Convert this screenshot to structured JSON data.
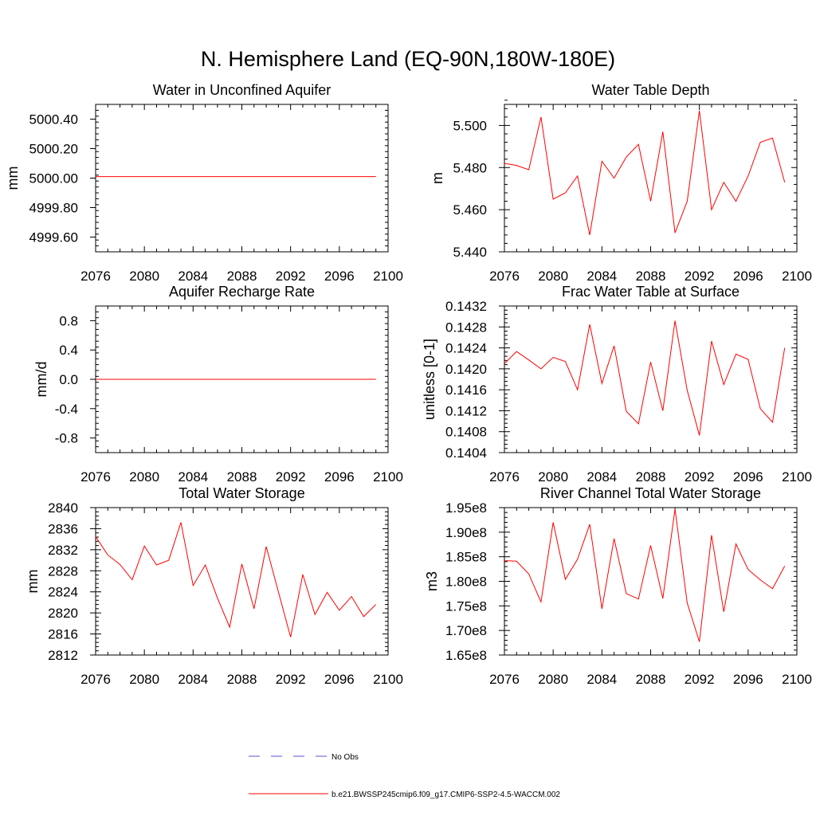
{
  "page_title": "N. Hemisphere Land (EQ-90N,180W-180E)",
  "colors": {
    "model_line": "#ff0000",
    "obs_line": "#5555cc",
    "axis": "#000000"
  },
  "legend": {
    "obs_label": "No Obs",
    "model_label": "b.e21.BWSSP245cmip6.f09_g17.CMIP6-SSP2-4.5-WACCM.002"
  },
  "chart_data": [
    {
      "id": "aquifer",
      "type": "line",
      "title": "Water in Unconfined Aquifer",
      "ylabel": "mm",
      "xlim": [
        2076,
        2100
      ],
      "ylim": [
        4999.5,
        5000.5
      ],
      "xticks": [
        "2076",
        "2080",
        "2084",
        "2088",
        "2092",
        "2096",
        "2100"
      ],
      "yticks": [
        "4999.60",
        "4999.80",
        "5000.00",
        "5000.20",
        "5000.40"
      ],
      "x": [
        2076,
        2077,
        2078,
        2079,
        2080,
        2081,
        2082,
        2083,
        2084,
        2085,
        2086,
        2087,
        2088,
        2089,
        2090,
        2091,
        2092,
        2093,
        2094,
        2095,
        2096,
        2097,
        2098,
        2099
      ],
      "series": [
        {
          "name": "b.e21.BWSSP245cmip6.f09_g17.CMIP6-SSP2-4.5-WACCM.002",
          "values": [
            5000.01,
            5000.01,
            5000.01,
            5000.01,
            5000.01,
            5000.01,
            5000.01,
            5000.01,
            5000.01,
            5000.01,
            5000.01,
            5000.01,
            5000.01,
            5000.01,
            5000.01,
            5000.01,
            5000.01,
            5000.01,
            5000.01,
            5000.01,
            5000.01,
            5000.01,
            5000.01,
            5000.01
          ]
        }
      ]
    },
    {
      "id": "wtd",
      "type": "line",
      "title": "Water Table Depth",
      "ylabel": "m",
      "xlim": [
        2076,
        2100
      ],
      "ylim": [
        5.44,
        5.51
      ],
      "xticks": [
        "2076",
        "2080",
        "2084",
        "2088",
        "2092",
        "2096",
        "2100"
      ],
      "yticks": [
        "5.440",
        "5.460",
        "5.480",
        "5.500"
      ],
      "x": [
        2076,
        2077,
        2078,
        2079,
        2080,
        2081,
        2082,
        2083,
        2084,
        2085,
        2086,
        2087,
        2088,
        2089,
        2090,
        2091,
        2092,
        2093,
        2094,
        2095,
        2096,
        2097,
        2098,
        2099
      ],
      "series": [
        {
          "name": "b.e21.BWSSP245cmip6.f09_g17.CMIP6-SSP2-4.5-WACCM.002",
          "values": [
            5.482,
            5.481,
            5.479,
            5.504,
            5.465,
            5.468,
            5.476,
            5.448,
            5.483,
            5.475,
            5.485,
            5.491,
            5.464,
            5.497,
            5.449,
            5.464,
            5.507,
            5.46,
            5.473,
            5.464,
            5.476,
            5.492,
            5.494,
            5.473
          ]
        }
      ]
    },
    {
      "id": "recharge",
      "type": "line",
      "title": "Aquifer Recharge Rate",
      "ylabel": "mm/d",
      "xlim": [
        2076,
        2100
      ],
      "ylim": [
        -1.0,
        1.0
      ],
      "xticks": [
        "2076",
        "2080",
        "2084",
        "2088",
        "2092",
        "2096",
        "2100"
      ],
      "yticks": [
        "-0.8",
        "-0.4",
        "0.0",
        "0.4",
        "0.8"
      ],
      "x": [
        2076,
        2077,
        2078,
        2079,
        2080,
        2081,
        2082,
        2083,
        2084,
        2085,
        2086,
        2087,
        2088,
        2089,
        2090,
        2091,
        2092,
        2093,
        2094,
        2095,
        2096,
        2097,
        2098,
        2099
      ],
      "series": [
        {
          "name": "b.e21.BWSSP245cmip6.f09_g17.CMIP6-SSP2-4.5-WACCM.002",
          "values": [
            0,
            0,
            0,
            0,
            0,
            0,
            0,
            0,
            0,
            0,
            0,
            0,
            0,
            0,
            0,
            0,
            0,
            0,
            0,
            0,
            0,
            0,
            0,
            0
          ]
        }
      ]
    },
    {
      "id": "fwts",
      "type": "line",
      "title": "Frac Water Table at Surface",
      "ylabel": "unitless [0-1]",
      "xlim": [
        2076,
        2100
      ],
      "ylim": [
        0.1404,
        0.1432
      ],
      "xticks": [
        "2076",
        "2080",
        "2084",
        "2088",
        "2092",
        "2096",
        "2100"
      ],
      "yticks": [
        "0.1404",
        "0.1408",
        "0.1412",
        "0.1416",
        "0.1420",
        "0.1424",
        "0.1428",
        "0.1432"
      ],
      "x": [
        2076,
        2077,
        2078,
        2079,
        2080,
        2081,
        2082,
        2083,
        2084,
        2085,
        2086,
        2087,
        2088,
        2089,
        2090,
        2091,
        2092,
        2093,
        2094,
        2095,
        2096,
        2097,
        2098,
        2099
      ],
      "series": [
        {
          "name": "b.e21.BWSSP245cmip6.f09_g17.CMIP6-SSP2-4.5-WACCM.002",
          "values": [
            0.1421,
            0.14233,
            0.14217,
            0.142,
            0.14222,
            0.14214,
            0.1416,
            0.14285,
            0.14172,
            0.14244,
            0.14119,
            0.14095,
            0.14213,
            0.1412,
            0.14292,
            0.14159,
            0.14073,
            0.14253,
            0.1417,
            0.14228,
            0.14218,
            0.14124,
            0.14098,
            0.1424
          ]
        }
      ]
    },
    {
      "id": "tws",
      "type": "line",
      "title": "Total Water Storage",
      "ylabel": "mm",
      "xlim": [
        2076,
        2100
      ],
      "ylim": [
        2812,
        2840
      ],
      "xticks": [
        "2076",
        "2080",
        "2084",
        "2088",
        "2092",
        "2096",
        "2100"
      ],
      "yticks": [
        "2812",
        "2816",
        "2820",
        "2824",
        "2828",
        "2832",
        "2836",
        "2840"
      ],
      "x": [
        2076,
        2077,
        2078,
        2079,
        2080,
        2081,
        2082,
        2083,
        2084,
        2085,
        2086,
        2087,
        2088,
        2089,
        2090,
        2091,
        2092,
        2093,
        2094,
        2095,
        2096,
        2097,
        2098,
        2099
      ],
      "series": [
        {
          "name": "b.e21.BWSSP245cmip6.f09_g17.CMIP6-SSP2-4.5-WACCM.002",
          "values": [
            2834.5,
            2831.0,
            2829.2,
            2826.3,
            2832.7,
            2829.1,
            2830.0,
            2837.2,
            2825.2,
            2829.1,
            2822.8,
            2817.3,
            2829.3,
            2820.8,
            2832.6,
            2824.0,
            2815.4,
            2827.3,
            2819.7,
            2823.9,
            2820.5,
            2823.1,
            2819.3,
            2821.6
          ]
        }
      ]
    },
    {
      "id": "river",
      "type": "line",
      "title": "River Channel Total Water Storage",
      "ylabel": "m3",
      "xlim": [
        2076,
        2100
      ],
      "ylim": [
        165000000.0,
        195000000.0
      ],
      "xticks": [
        "2076",
        "2080",
        "2084",
        "2088",
        "2092",
        "2096",
        "2100"
      ],
      "yticks": [
        "1.65e8",
        "1.70e8",
        "1.75e8",
        "1.80e8",
        "1.85e8",
        "1.90e8",
        "1.95e8"
      ],
      "x": [
        2076,
        2077,
        2078,
        2079,
        2080,
        2081,
        2082,
        2083,
        2084,
        2085,
        2086,
        2087,
        2088,
        2089,
        2090,
        2091,
        2092,
        2093,
        2094,
        2095,
        2096,
        2097,
        2098,
        2099
      ],
      "series": [
        {
          "name": "b.e21.BWSSP245cmip6.f09_g17.CMIP6-SSP2-4.5-WACCM.002",
          "values": [
            184200000,
            184100000,
            181500000,
            175800000,
            192000000,
            180400000,
            184500000,
            191600000,
            174400000,
            188700000,
            177500000,
            176400000,
            187300000,
            176500000,
            194700000,
            175600000,
            167700000,
            189400000,
            173800000,
            187600000,
            182400000,
            180300000,
            178500000,
            183100000
          ]
        }
      ]
    }
  ]
}
